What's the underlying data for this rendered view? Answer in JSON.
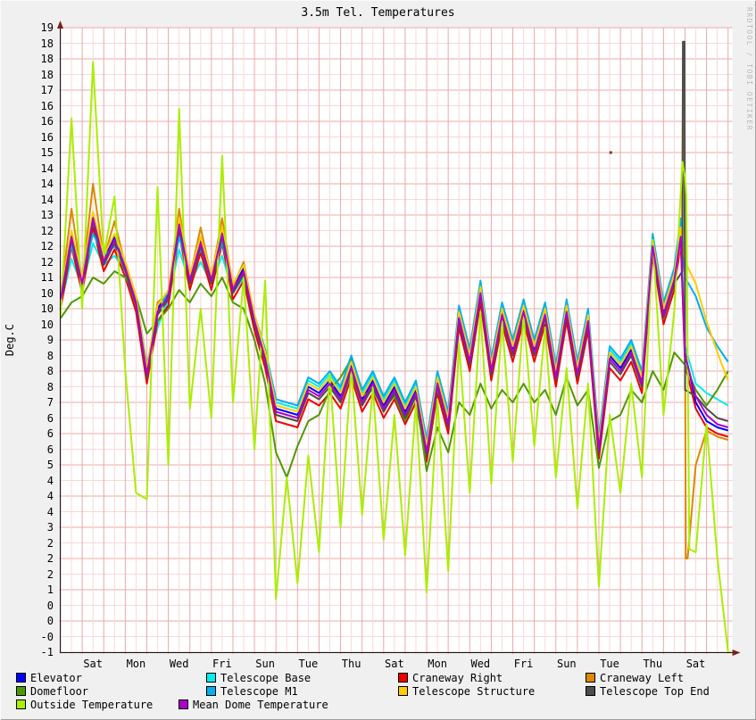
{
  "title": "3.5m Tel. Temperatures",
  "y_axis_label": "Deg.C",
  "watermark": "RRDTOOL / TOBI OETIKER",
  "colors": {
    "background": "#f0f0f0",
    "plot_background": "#ffffff",
    "grid_minor": "#f8d8d8",
    "grid_major": "#eda8a8",
    "axis": "#161616",
    "arrow": "#7a1f1f",
    "text": "#000000",
    "watermark": "#b9b9b9"
  },
  "chart_data": {
    "type": "line",
    "title": "3.5m Tel. Temperatures",
    "xlabel": "",
    "ylabel": "Deg.C",
    "ylim": [
      -1,
      19
    ],
    "y_grid_step": 0.5,
    "y_major_step": 1,
    "x_span_days": 31.2,
    "x_sample_step_days": 0.5,
    "x_grid_step_days": 0.5,
    "x_major_step_days": 1,
    "grid_on": true,
    "legend_position": "bottom",
    "y_tick_labels": [
      "19",
      "18",
      "18",
      "18",
      "17",
      "16",
      "16",
      "16",
      "15",
      "14",
      "14",
      "14",
      "13",
      "12",
      "12",
      "12",
      "11",
      "10",
      "10",
      "10",
      "9",
      "8",
      "8",
      "8",
      "7",
      "6",
      "6",
      "6",
      "5",
      "4",
      "4",
      "4",
      "3",
      "2",
      "2",
      "2",
      "1",
      "0",
      "0",
      "-0",
      "-1"
    ],
    "x_ticks": [
      {
        "day": 1.5,
        "label": "Sat"
      },
      {
        "day": 3.5,
        "label": "Mon"
      },
      {
        "day": 5.5,
        "label": "Wed"
      },
      {
        "day": 7.5,
        "label": "Fri"
      },
      {
        "day": 9.5,
        "label": "Sun"
      },
      {
        "day": 11.5,
        "label": "Tue"
      },
      {
        "day": 13.5,
        "label": "Thu"
      },
      {
        "day": 15.5,
        "label": "Sat"
      },
      {
        "day": 17.5,
        "label": "Mon"
      },
      {
        "day": 19.5,
        "label": "Wed"
      },
      {
        "day": 21.5,
        "label": "Fri"
      },
      {
        "day": 23.5,
        "label": "Sun"
      },
      {
        "day": 25.5,
        "label": "Tue"
      },
      {
        "day": 27.5,
        "label": "Thu"
      },
      {
        "day": 29.5,
        "label": "Sat"
      }
    ],
    "series": [
      {
        "name": "elevator",
        "label": "Elevator",
        "color": "#0000ff",
        "values": [
          10.4,
          12.4,
          10.9,
          13.0,
          11.6,
          12.3,
          11.4,
          10.3,
          8.0,
          10.0,
          10.5,
          12.8,
          11.0,
          12.2,
          11.0,
          12.5,
          10.7,
          11.3,
          9.7,
          8.5,
          6.8,
          6.7,
          6.6,
          7.5,
          7.3,
          7.7,
          7.2,
          8.2,
          7.1,
          7.7,
          6.9,
          7.5,
          6.7,
          7.4,
          5.5,
          7.7,
          6.4,
          9.8,
          8.4,
          10.6,
          8.1,
          9.9,
          8.7,
          10.0,
          8.7,
          9.9,
          7.9,
          10.0,
          8.0,
          9.7,
          5.6,
          8.5,
          8.1,
          8.7,
          7.7,
          12.1,
          9.9,
          11.0,
          8.6,
          7.0,
          6.4,
          6.2,
          6.1
        ],
        "extra": [
          [
            28.8,
            12.4
          ]
        ]
      },
      {
        "name": "telescope-base",
        "label": "Telescope Base",
        "color": "#00eeee",
        "values": [
          10.1,
          11.6,
          10.7,
          12.1,
          11.4,
          11.7,
          11.2,
          10.1,
          8.1,
          9.4,
          10.3,
          11.9,
          10.8,
          11.5,
          10.8,
          11.7,
          10.5,
          11.0,
          9.7,
          8.6,
          7.0,
          6.9,
          6.8,
          7.7,
          7.5,
          7.9,
          7.4,
          8.4,
          7.3,
          7.9,
          7.1,
          7.7,
          6.9,
          7.6,
          5.7,
          7.9,
          6.6,
          10.0,
          8.6,
          10.8,
          8.3,
          10.1,
          8.9,
          10.2,
          8.9,
          10.1,
          8.1,
          10.2,
          8.2,
          9.9,
          5.8,
          8.7,
          8.3,
          8.9,
          7.9,
          12.3,
          10.1,
          11.2,
          8.8,
          7.6,
          7.3,
          7.1,
          6.9
        ],
        "extra": [
          [
            28.8,
            12.5
          ]
        ]
      },
      {
        "name": "craneway-right",
        "label": "Craneway Right",
        "color": "#ee0000",
        "values": [
          10.0,
          12.0,
          10.5,
          12.6,
          11.2,
          11.9,
          11.0,
          9.9,
          7.6,
          9.6,
          10.1,
          12.4,
          10.6,
          11.8,
          10.6,
          12.1,
          10.3,
          10.9,
          9.3,
          8.1,
          6.4,
          6.3,
          6.2,
          7.1,
          6.9,
          7.3,
          6.8,
          7.8,
          6.7,
          7.3,
          6.5,
          7.1,
          6.3,
          7.0,
          5.1,
          7.3,
          6.0,
          9.4,
          8.0,
          10.2,
          7.7,
          9.5,
          8.3,
          9.6,
          8.3,
          9.5,
          7.5,
          9.6,
          7.6,
          9.3,
          5.2,
          8.1,
          7.7,
          8.3,
          7.3,
          11.7,
          9.5,
          10.6,
          8.2,
          6.8,
          6.2,
          6.0,
          5.9
        ],
        "extra": [
          [
            28.8,
            12.1
          ]
        ]
      },
      {
        "name": "craneway-left",
        "label": "Craneway Left",
        "color": "#dd8800",
        "values": [
          10.4,
          13.2,
          10.9,
          14.0,
          11.6,
          12.8,
          11.4,
          10.3,
          8.0,
          10.2,
          10.5,
          13.2,
          11.0,
          12.6,
          11.0,
          12.9,
          10.7,
          11.5,
          9.7,
          8.5,
          6.6,
          6.5,
          6.4,
          7.3,
          7.1,
          7.5,
          7.0,
          8.0,
          6.9,
          7.5,
          6.7,
          7.3,
          6.5,
          7.2,
          5.3,
          7.5,
          6.2,
          9.9,
          8.5,
          10.7,
          8.2,
          10.0,
          8.8,
          10.1,
          8.8,
          10.0,
          8.0,
          10.1,
          8.1,
          9.8,
          5.7,
          8.6,
          8.2,
          8.8,
          7.8,
          12.2,
          10.0,
          11.1,
          9.0,
          5.0,
          6.1,
          5.9,
          5.8
        ],
        "extra": [
          [
            28.86,
            12.2
          ],
          [
            28.9,
            17.4
          ],
          [
            28.96,
            17.4
          ],
          [
            29.04,
            2.0
          ],
          [
            29.12,
            2.0
          ]
        ]
      },
      {
        "name": "domefloor",
        "label": "Domefloor",
        "color": "#4d9a00",
        "values": [
          9.7,
          10.2,
          10.4,
          11.0,
          10.8,
          11.2,
          11.0,
          10.4,
          9.2,
          9.6,
          10.0,
          10.6,
          10.2,
          10.8,
          10.4,
          11.0,
          10.2,
          10.0,
          9.0,
          7.6,
          5.4,
          4.6,
          5.6,
          6.4,
          6.6,
          7.4,
          7.8,
          8.4,
          7.2,
          7.4,
          6.8,
          7.2,
          6.4,
          7.2,
          4.8,
          6.2,
          5.4,
          7.0,
          6.6,
          7.6,
          6.8,
          7.4,
          7.0,
          7.6,
          7.0,
          7.4,
          6.6,
          7.8,
          6.9,
          7.4,
          4.9,
          6.4,
          6.6,
          7.4,
          7.0,
          8.0,
          7.4,
          8.6,
          8.2,
          7.4,
          6.9,
          7.4,
          8.0
        ],
        "extra": []
      },
      {
        "name": "telescope-m1",
        "label": "Telescope M1",
        "color": "#00b0f0",
        "values": [
          10.5,
          12.0,
          11.0,
          12.4,
          11.7,
          12.0,
          11.5,
          10.4,
          8.2,
          9.8,
          10.6,
          12.3,
          11.1,
          11.9,
          11.1,
          12.1,
          10.8,
          11.4,
          9.8,
          8.7,
          7.1,
          7.0,
          6.9,
          7.8,
          7.6,
          8.0,
          7.5,
          8.5,
          7.4,
          8.0,
          7.2,
          7.8,
          7.0,
          7.7,
          5.8,
          8.0,
          6.7,
          10.1,
          8.7,
          10.9,
          8.4,
          10.2,
          9.0,
          10.3,
          9.0,
          10.2,
          8.2,
          10.3,
          8.3,
          10.0,
          5.9,
          8.8,
          8.4,
          9.0,
          8.0,
          12.4,
          10.2,
          11.3,
          11.0,
          10.4,
          9.4,
          8.8,
          8.3
        ],
        "extra": [
          [
            28.8,
            12.9
          ]
        ]
      },
      {
        "name": "telescope-structure",
        "label": "Telescope Structure",
        "color": "#ffcc00",
        "values": [
          10.4,
          12.5,
          11.0,
          13.1,
          11.7,
          12.4,
          11.5,
          10.4,
          8.1,
          10.1,
          10.6,
          12.9,
          11.1,
          12.3,
          11.1,
          12.6,
          10.8,
          11.4,
          9.8,
          8.6,
          6.9,
          6.8,
          6.7,
          7.6,
          7.4,
          7.8,
          7.3,
          8.3,
          7.2,
          7.8,
          7.0,
          7.6,
          6.8,
          7.5,
          5.6,
          7.8,
          6.5,
          9.9,
          8.5,
          10.7,
          8.2,
          10.0,
          8.8,
          10.1,
          8.8,
          10.0,
          8.0,
          10.1,
          8.1,
          9.8,
          5.7,
          8.6,
          8.2,
          8.8,
          7.8,
          12.2,
          10.0,
          11.1,
          11.5,
          10.8,
          9.6,
          8.6,
          7.7
        ],
        "extra": [
          [
            28.8,
            12.6
          ]
        ]
      },
      {
        "name": "telescope-top-end",
        "label": "Telescope Top End",
        "color": "#4d4d4d",
        "values": [
          10.2,
          12.2,
          10.7,
          12.8,
          11.4,
          12.1,
          11.2,
          10.1,
          7.8,
          9.8,
          10.3,
          12.6,
          10.8,
          12.0,
          10.8,
          12.3,
          10.5,
          11.1,
          9.5,
          8.3,
          6.6,
          6.5,
          6.4,
          7.3,
          7.1,
          7.5,
          7.0,
          8.0,
          6.9,
          7.5,
          6.7,
          7.3,
          6.5,
          7.2,
          5.3,
          7.5,
          6.2,
          9.6,
          8.2,
          10.4,
          7.9,
          9.7,
          8.5,
          9.8,
          8.5,
          9.7,
          7.7,
          9.8,
          7.8,
          9.5,
          5.4,
          8.3,
          7.9,
          8.5,
          7.5,
          11.9,
          9.7,
          10.8,
          7.4,
          7.2,
          6.8,
          6.5,
          6.4
        ],
        "extra": [
          [
            28.88,
            11.2
          ],
          [
            28.9,
            18.55
          ],
          [
            28.98,
            18.55
          ]
        ]
      },
      {
        "name": "outside-temperature",
        "label": "Outside Temperature",
        "color": "#aaee00",
        "values": [
          9.8,
          16.1,
          10.0,
          17.9,
          11.7,
          13.6,
          8.0,
          4.1,
          3.9,
          13.9,
          5.0,
          16.4,
          6.8,
          10.0,
          6.5,
          14.9,
          7.0,
          11.0,
          5.5,
          10.9,
          0.7,
          4.6,
          1.2,
          5.3,
          2.2,
          7.9,
          3.0,
          8.1,
          3.4,
          7.5,
          2.6,
          6.6,
          2.1,
          7.0,
          0.9,
          7.1,
          1.6,
          8.9,
          4.1,
          9.9,
          4.4,
          9.6,
          5.1,
          9.8,
          5.6,
          9.4,
          4.6,
          8.1,
          3.6,
          7.6,
          1.1,
          6.6,
          4.1,
          7.6,
          4.6,
          12.2,
          6.6,
          9.9,
          14.2,
          2.2,
          6.3,
          2.0,
          -1.0
        ],
        "extra": [
          [
            28.88,
            14.7
          ],
          [
            29.06,
            13.6
          ],
          [
            29.2,
            2.3
          ],
          [
            31.15,
            -1.0
          ]
        ]
      },
      {
        "name": "mean-dome-temperature",
        "label": "Mean Dome Temperature",
        "color": "#aa00cc",
        "values": [
          10.3,
          12.3,
          10.8,
          12.9,
          11.5,
          12.2,
          11.3,
          10.2,
          7.9,
          9.9,
          10.4,
          12.7,
          10.9,
          12.1,
          10.9,
          12.4,
          10.6,
          11.2,
          9.6,
          8.4,
          6.7,
          6.6,
          6.5,
          7.4,
          7.2,
          7.6,
          7.1,
          8.1,
          7.0,
          7.6,
          6.8,
          7.4,
          6.6,
          7.3,
          5.4,
          7.6,
          6.3,
          9.7,
          8.3,
          10.5,
          8.0,
          9.8,
          8.6,
          9.9,
          8.6,
          9.8,
          7.8,
          9.9,
          7.9,
          9.6,
          5.5,
          8.4,
          8.0,
          8.6,
          7.6,
          12.0,
          9.8,
          10.9,
          8.5,
          7.2,
          6.6,
          6.3,
          6.2
        ],
        "extra": [
          [
            28.8,
            12.3
          ]
        ]
      }
    ],
    "stray_point": {
      "day": 25.55,
      "value": 15.0,
      "color": "#7a3a3a"
    }
  },
  "legend": {
    "rows": [
      [
        {
          "label": "Elevator",
          "color": "#0000ff",
          "x": 18
        },
        {
          "label": "Telescope Base",
          "color": "#00eeee",
          "x": 231
        },
        {
          "label": "Craneway Right",
          "color": "#ee0000",
          "x": 446
        },
        {
          "label": "Craneway Left",
          "color": "#dd8800",
          "x": 656
        }
      ],
      [
        {
          "label": "Domefloor",
          "color": "#4d9a00",
          "x": 18
        },
        {
          "label": "Telescope M1",
          "color": "#00b0f0",
          "x": 231
        },
        {
          "label": "Telescope Structure",
          "color": "#ffcc00",
          "x": 446
        },
        {
          "label": "Telescope Top End",
          "color": "#4d4d4d",
          "x": 656
        }
      ],
      [
        {
          "label": "Outside Temperature",
          "color": "#aaee00",
          "x": 18
        },
        {
          "label": "Mean Dome Temperature",
          "color": "#aa00cc",
          "x": 200
        }
      ]
    ]
  }
}
